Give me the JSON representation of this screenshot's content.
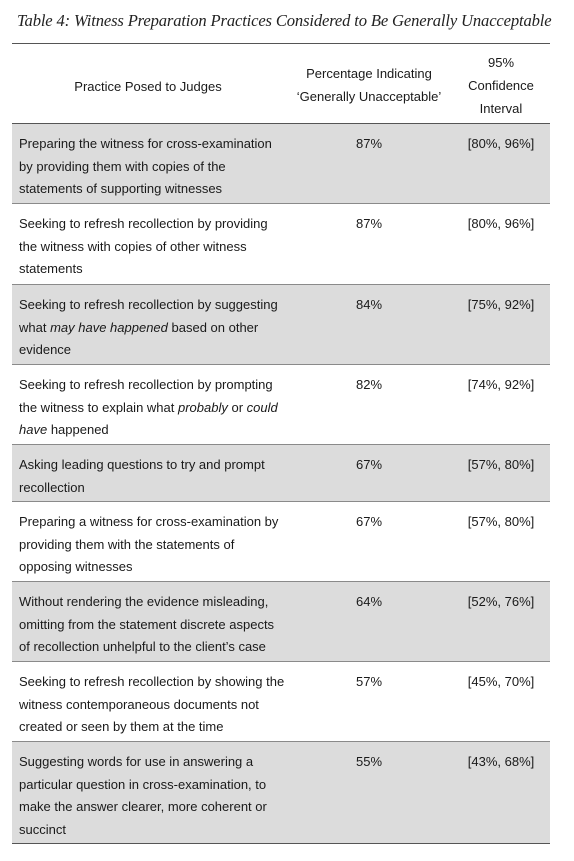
{
  "title": "Table 4: Witness Preparation Practices Considered to Be Generally Unacceptable",
  "headers": {
    "practice": "Practice Posed to Judges",
    "pct_line1": "Percentage Indicating",
    "pct_line2": "‘Generally Unacceptable’",
    "ci_line1": "95%",
    "ci_line2": "Confidence",
    "ci_line3": "Interval"
  },
  "rows": [
    {
      "practice": "Preparing the witness for cross-examination by providing them with copies of the statements of supporting witnesses",
      "percentage": "87%",
      "ci": "[80%, 96%]",
      "shaded": true
    },
    {
      "practice": "Seeking to refresh recollection by providing the witness with copies of other witness statements",
      "percentage": "87%",
      "ci": "[80%, 96%]",
      "shaded": false
    },
    {
      "practice_parts": [
        {
          "text": "Seeking to refresh recollection by suggesting what ",
          "italic": false
        },
        {
          "text": "may have happened",
          "italic": true
        },
        {
          "text": " based on other evidence",
          "italic": false
        }
      ],
      "practice": "Seeking to refresh recollection by suggesting what may have happened based on other evidence",
      "percentage": "84%",
      "ci": "[75%, 92%]",
      "shaded": true
    },
    {
      "practice_parts": [
        {
          "text": "Seeking to refresh recollection by prompting the witness to explain what ",
          "italic": false
        },
        {
          "text": "probably",
          "italic": true
        },
        {
          "text": " or ",
          "italic": false
        },
        {
          "text": "could have",
          "italic": true
        },
        {
          "text": " happened",
          "italic": false
        }
      ],
      "practice": "Seeking to refresh recollection by prompting the witness to explain what probably or could have happened",
      "percentage": "82%",
      "ci": "[74%, 92%]",
      "shaded": false
    },
    {
      "practice": "Asking leading questions to try and prompt recollection",
      "percentage": "67%",
      "ci": "[57%, 80%]",
      "shaded": true
    },
    {
      "practice": "Preparing a witness for cross-examination by providing them with the statements of opposing witnesses",
      "percentage": "67%",
      "ci": "[57%, 80%]",
      "shaded": false
    },
    {
      "practice": "Without rendering the evidence misleading, omitting from the statement discrete aspects of recollection unhelpful to the client’s case",
      "percentage": "64%",
      "ci": "[52%, 76%]",
      "shaded": true
    },
    {
      "practice": "Seeking to refresh recollection by showing the witness contemporaneous documents not created or seen by them at the time",
      "percentage": "57%",
      "ci": "[45%, 70%]",
      "shaded": false
    },
    {
      "practice": "Suggesting words for use in answering a particular question in cross-examination, to make the answer clearer, more coherent or succinct",
      "percentage": "55%",
      "ci": "[43%, 68%]",
      "shaded": true
    }
  ]
}
